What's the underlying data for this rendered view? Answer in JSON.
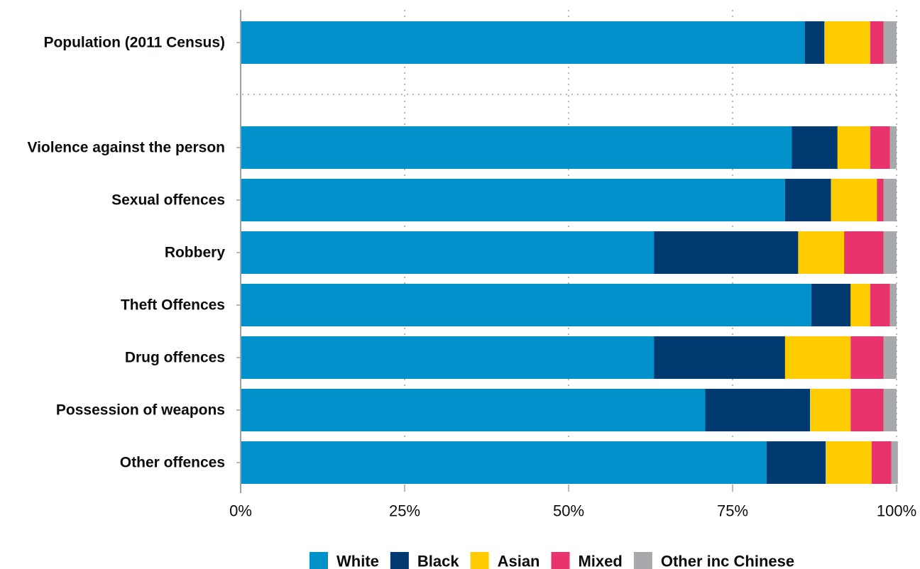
{
  "chart_data": {
    "type": "bar",
    "orientation": "horizontal",
    "stacked": true,
    "title": "",
    "xlabel": "",
    "ylabel": "",
    "xlim": [
      0,
      100
    ],
    "ticks": [
      "0%",
      "25%",
      "50%",
      "75%",
      "100%"
    ],
    "tick_values": [
      0,
      25,
      50,
      75,
      100
    ],
    "grid": true,
    "legend_position": "bottom",
    "categories": [
      "Population (2011 Census)",
      "Violence against the person",
      "Sexual offences",
      "Robbery",
      "Theft Offences",
      "Drug offences",
      "Possession of weapons",
      "Other offences"
    ],
    "series": [
      {
        "name": "White",
        "color": "#0091cb",
        "values": [
          86,
          84,
          83,
          63,
          87,
          63,
          70.8,
          80.2
        ]
      },
      {
        "name": "Black",
        "color": "#003a70",
        "values": [
          3,
          7,
          7,
          22,
          6,
          20,
          16,
          9
        ]
      },
      {
        "name": "Asian",
        "color": "#ffcc00",
        "values": [
          7,
          5,
          7,
          7,
          3,
          10,
          6.2,
          7
        ]
      },
      {
        "name": "Mixed",
        "color": "#e8336c",
        "values": [
          2,
          3,
          1,
          6,
          3,
          5,
          5,
          3
        ]
      },
      {
        "name": "Other inc Chinese",
        "color": "#a7a9ac",
        "values": [
          2,
          1,
          2,
          2,
          1,
          2,
          2,
          1
        ]
      }
    ]
  }
}
